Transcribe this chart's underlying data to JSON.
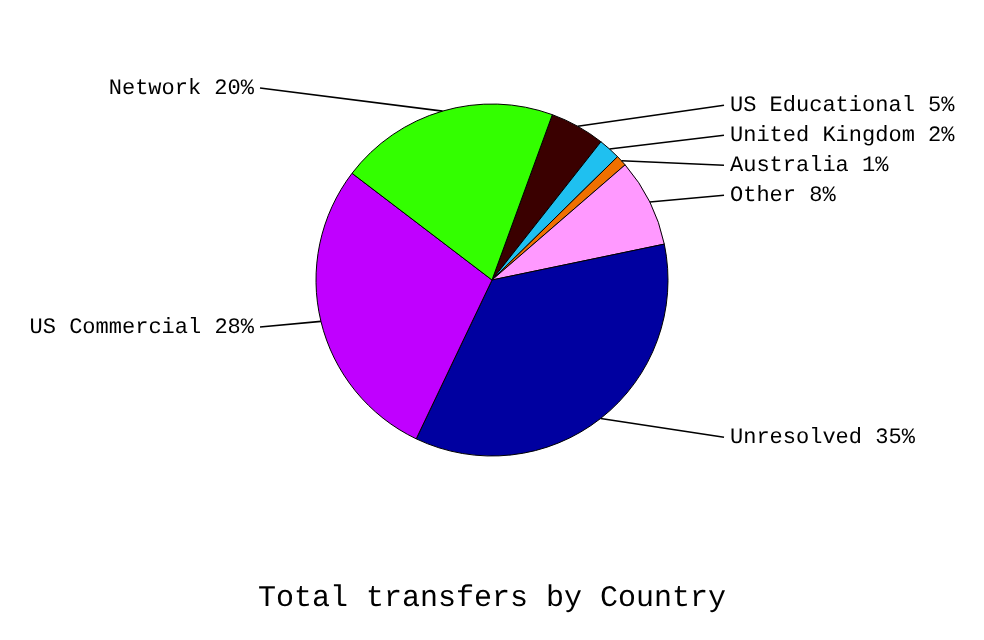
{
  "chart_data": {
    "type": "pie",
    "title": "Total transfers by Country",
    "categories": [
      "US Educational",
      "United Kingdom",
      "Australia",
      "Other",
      "Unresolved",
      "US Commercial",
      "Network"
    ],
    "values": [
      5,
      2,
      1,
      8,
      35,
      28,
      20
    ],
    "value_labels": [
      "5%",
      "2%",
      "1%",
      "8%",
      "35%",
      "28%",
      "20%"
    ],
    "colors": [
      "#3a0000",
      "#1fc0f0",
      "#f07000",
      "#ff99ff",
      "#0000a0",
      "#c000ff",
      "#33ff00"
    ]
  }
}
